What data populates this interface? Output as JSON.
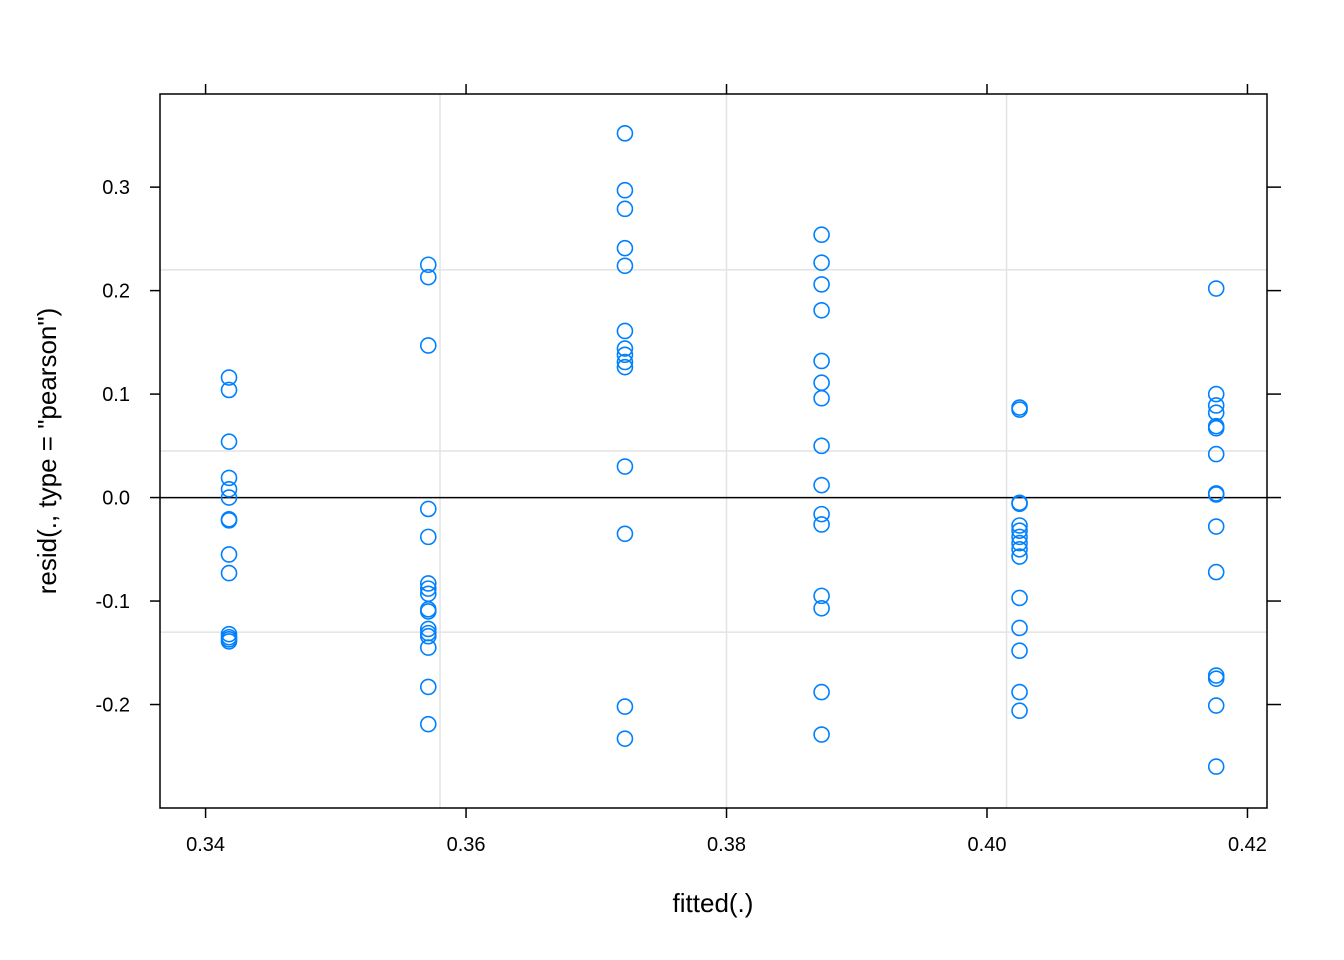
{
  "chart_data": {
    "type": "scatter",
    "title": "",
    "xlabel": "fitted(.)",
    "ylabel": "resid(., type = \"pearson\")",
    "xlim": [
      0.3365,
      0.4215
    ],
    "ylim": [
      -0.3,
      0.39
    ],
    "x_ticks": [
      {
        "value": 0.34,
        "label": "0.34"
      },
      {
        "value": 0.36,
        "label": "0.36"
      },
      {
        "value": 0.38,
        "label": "0.38"
      },
      {
        "value": 0.4,
        "label": "0.40"
      },
      {
        "value": 0.42,
        "label": "0.42"
      }
    ],
    "y_ticks": [
      {
        "value": -0.2,
        "label": "-0.2"
      },
      {
        "value": -0.1,
        "label": "-0.1"
      },
      {
        "value": 0.0,
        "label": "0.0"
      },
      {
        "value": 0.1,
        "label": "0.1"
      },
      {
        "value": 0.2,
        "label": "0.2"
      },
      {
        "value": 0.3,
        "label": "0.3"
      }
    ],
    "grid": true,
    "grid_x": [
      0.358,
      0.38,
      0.4015
    ],
    "grid_y": [
      0.22,
      0.045,
      -0.13
    ],
    "reference_line_y": 0.0,
    "point_color": "#0080ff",
    "groups": [
      {
        "x": 0.3418,
        "y": [
          0.116,
          0.104,
          0.054,
          0.019,
          0.008,
          0.0,
          -0.021,
          -0.022,
          -0.055,
          -0.073,
          -0.132,
          -0.135,
          -0.137,
          -0.139
        ]
      },
      {
        "x": 0.3571,
        "y": [
          0.225,
          0.213,
          0.147,
          -0.011,
          -0.038,
          -0.083,
          -0.088,
          -0.093,
          -0.108,
          -0.11,
          -0.127,
          -0.131,
          -0.134,
          -0.145,
          -0.183,
          -0.219
        ]
      },
      {
        "x": 0.3722,
        "y": [
          0.352,
          0.297,
          0.279,
          0.241,
          0.224,
          0.161,
          0.144,
          0.138,
          0.131,
          0.126,
          0.03,
          -0.035,
          -0.202,
          -0.233
        ]
      },
      {
        "x": 0.3873,
        "y": [
          0.254,
          0.227,
          0.206,
          0.181,
          0.132,
          0.111,
          0.096,
          0.05,
          0.012,
          -0.016,
          -0.026,
          -0.095,
          -0.107,
          -0.188,
          -0.229
        ]
      },
      {
        "x": 0.4025,
        "y": [
          0.087,
          0.085,
          -0.005,
          -0.006,
          -0.027,
          -0.032,
          -0.038,
          -0.044,
          -0.05,
          -0.057,
          -0.097,
          -0.126,
          -0.148,
          -0.188,
          -0.206
        ]
      },
      {
        "x": 0.4176,
        "y": [
          0.202,
          0.1,
          0.089,
          0.082,
          0.069,
          0.067,
          0.042,
          0.004,
          0.003,
          -0.028,
          -0.072,
          -0.172,
          -0.175,
          -0.201,
          -0.26
        ]
      }
    ]
  }
}
